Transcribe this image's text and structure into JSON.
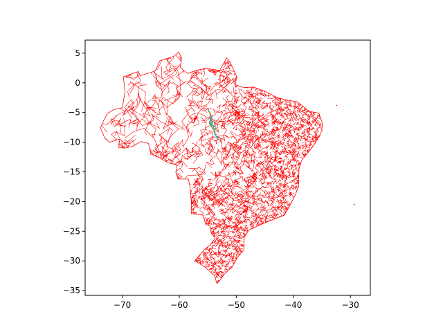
{
  "chart_data": {
    "type": "map",
    "title": "",
    "xlabel": "",
    "ylabel": "",
    "xlim": [
      -76.5,
      -26.5
    ],
    "ylim": [
      -35.8,
      7.2
    ],
    "x_ticks": [
      -70,
      -60,
      -50,
      -40,
      -30
    ],
    "y_ticks": [
      5,
      0,
      -5,
      -10,
      -15,
      -20,
      -25,
      -30,
      -35
    ],
    "grid": false,
    "boundary_color": "#ff0000",
    "outline": [
      [
        -73.8,
        -7.6
      ],
      [
        -73.2,
        -6.2
      ],
      [
        -72.6,
        -5.2
      ],
      [
        -71.5,
        -4.5
      ],
      [
        -70.0,
        -4.2
      ],
      [
        -69.5,
        -1.5
      ],
      [
        -69.8,
        1.0
      ],
      [
        -67.2,
        1.9
      ],
      [
        -66.8,
        1.2
      ],
      [
        -64.2,
        2.0
      ],
      [
        -63.4,
        3.7
      ],
      [
        -60.9,
        4.5
      ],
      [
        -60.1,
        5.2
      ],
      [
        -59.6,
        4.2
      ],
      [
        -59.8,
        2.6
      ],
      [
        -58.6,
        1.6
      ],
      [
        -57.0,
        2.1
      ],
      [
        -55.2,
        2.5
      ],
      [
        -54.5,
        2.3
      ],
      [
        -52.9,
        2.1
      ],
      [
        -51.7,
        4.2
      ],
      [
        -51.1,
        3.5
      ],
      [
        -50.4,
        2.0
      ],
      [
        -49.9,
        1.0
      ],
      [
        -50.2,
        -0.3
      ],
      [
        -48.6,
        -0.8
      ],
      [
        -47.0,
        -0.7
      ],
      [
        -44.8,
        -1.5
      ],
      [
        -43.0,
        -2.4
      ],
      [
        -41.2,
        -2.9
      ],
      [
        -39.3,
        -3.2
      ],
      [
        -38.5,
        -3.8
      ],
      [
        -37.2,
        -4.8
      ],
      [
        -35.5,
        -5.1
      ],
      [
        -34.9,
        -6.8
      ],
      [
        -35.0,
        -8.0
      ],
      [
        -35.4,
        -9.0
      ],
      [
        -36.4,
        -10.5
      ],
      [
        -37.2,
        -11.5
      ],
      [
        -38.5,
        -13.0
      ],
      [
        -39.0,
        -14.5
      ],
      [
        -39.1,
        -17.5
      ],
      [
        -39.7,
        -19.0
      ],
      [
        -40.8,
        -21.0
      ],
      [
        -41.6,
        -22.3
      ],
      [
        -43.5,
        -23.0
      ],
      [
        -45.3,
        -23.7
      ],
      [
        -47.8,
        -24.8
      ],
      [
        -48.6,
        -26.0
      ],
      [
        -48.7,
        -28.2
      ],
      [
        -49.8,
        -29.4
      ],
      [
        -50.7,
        -31.0
      ],
      [
        -52.1,
        -32.2
      ],
      [
        -52.9,
        -33.3
      ],
      [
        -53.4,
        -33.8
      ],
      [
        -53.8,
        -32.5
      ],
      [
        -55.5,
        -31.0
      ],
      [
        -56.9,
        -30.2
      ],
      [
        -57.3,
        -30.0
      ],
      [
        -55.7,
        -28.2
      ],
      [
        -54.6,
        -27.3
      ],
      [
        -53.7,
        -26.2
      ],
      [
        -54.4,
        -25.3
      ],
      [
        -54.6,
        -24.1
      ],
      [
        -55.4,
        -23.8
      ],
      [
        -55.8,
        -22.3
      ],
      [
        -57.9,
        -22.0
      ],
      [
        -57.9,
        -20.0
      ],
      [
        -58.1,
        -17.5
      ],
      [
        -58.4,
        -16.2
      ],
      [
        -60.2,
        -16.2
      ],
      [
        -60.6,
        -15.1
      ],
      [
        -60.4,
        -13.8
      ],
      [
        -61.9,
        -13.5
      ],
      [
        -63.5,
        -12.6
      ],
      [
        -65.0,
        -12.0
      ],
      [
        -65.4,
        -10.2
      ],
      [
        -66.7,
        -9.9
      ],
      [
        -68.2,
        -10.7
      ],
      [
        -69.6,
        -11.0
      ],
      [
        -70.6,
        -10.9
      ],
      [
        -70.5,
        -9.5
      ],
      [
        -72.2,
        -10.0
      ],
      [
        -73.0,
        -9.4
      ]
    ],
    "offshore_points": [
      [
        -32.4,
        -3.8
      ],
      [
        -29.3,
        -20.5
      ]
    ],
    "contour_overlay": {
      "colors": [
        "#1f77b4",
        "#2ca02c",
        "#bcbd22",
        "#ffbb78",
        "#7f7f7f",
        "#17becf"
      ]
    }
  }
}
